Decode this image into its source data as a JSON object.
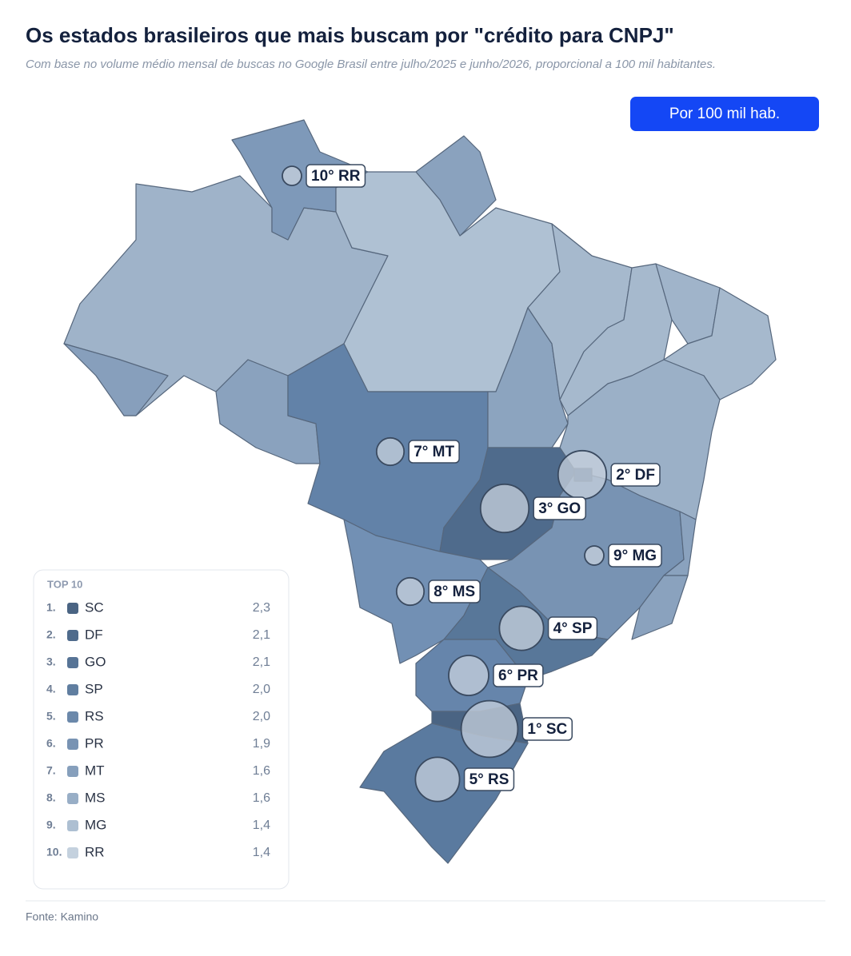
{
  "header": {
    "title": "Os estados brasileiros que mais buscam por \"crédito para CNPJ\"",
    "subtitle": "Com base no volume médio mensal de buscas no Google Brasil entre julho/2025 e junho/2026, proporcional a 100 mil habitantes.",
    "toggle": "Por 100 mil hab."
  },
  "legend": {
    "title": "TOP 10",
    "items": [
      {
        "rank": "1.",
        "state": "SC",
        "value": 2.3,
        "value_label": "2,3",
        "color": "#4a6483",
        "bubble_label": "1° SC"
      },
      {
        "rank": "2.",
        "state": "DF",
        "value": 2.1,
        "value_label": "2,1",
        "color": "#4f6b8c",
        "bubble_label": "2° DF"
      },
      {
        "rank": "3.",
        "state": "GO",
        "value": 2.1,
        "value_label": "2,1",
        "color": "#577496",
        "bubble_label": "3° GO"
      },
      {
        "rank": "4.",
        "state": "SP",
        "value": 2.0,
        "value_label": "2,0",
        "color": "#607ea0",
        "bubble_label": "4° SP"
      },
      {
        "rank": "5.",
        "state": "RS",
        "value": 2.0,
        "value_label": "2,0",
        "color": "#6b88aa",
        "bubble_label": "5° RS"
      },
      {
        "rank": "6.",
        "state": "PR",
        "value": 1.9,
        "value_label": "1,9",
        "color": "#7893b3",
        "bubble_label": "6° PR"
      },
      {
        "rank": "7.",
        "state": "MT",
        "value": 1.6,
        "value_label": "1,6",
        "color": "#869fbc",
        "bubble_label": "7° MT"
      },
      {
        "rank": "8.",
        "state": "MS",
        "value": 1.6,
        "value_label": "1,6",
        "color": "#98aec6",
        "bubble_label": "8° MS"
      },
      {
        "rank": "9.",
        "state": "MG",
        "value": 1.4,
        "value_label": "1,4",
        "color": "#adbfd2",
        "bubble_label": "9° MG"
      },
      {
        "rank": "10.",
        "state": "RR",
        "value": 1.4,
        "value_label": "1,4",
        "color": "#c4d1de",
        "bubble_label": "10° RR"
      }
    ]
  },
  "footer": {
    "source": "Fonte: Kamino"
  }
}
